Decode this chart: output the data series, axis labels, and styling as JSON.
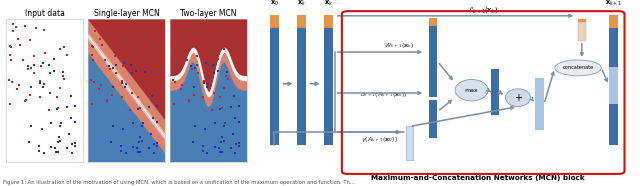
{
  "fig_width": 6.4,
  "fig_height": 1.86,
  "dpi": 100,
  "background": "#ffffff",
  "panel_titles": [
    "Input data",
    "Single-layer MCN",
    "Two-layer MCN"
  ],
  "panel_title_fontsize": 5.5,
  "caption_fontsize": 3.8,
  "mcn_block_label": "Maximum-and-Concatenation Networks (MCN) block",
  "mcn_block_label_fontsize": 5.2,
  "math_labels": {
    "x0": "$\\mathbf{x}_0$",
    "xk_bar": "$\\mathbf{x}_{\\bar{k}}$",
    "xk": "$\\mathbf{x}_k$",
    "Lk1": "$\\mathcal{L}_{k+1}(\\mathbf{x}_k)$",
    "xk1": "$\\mathbf{x}_{k+1}$",
    "Wk1": "$W_{k+1}(\\mathbf{x}_k)$",
    "sigma_k1": "$\\sigma_{k+1}(A_{k+1}(\\mathbf{x}_k))$",
    "gamma_Ak1": "$\\gamma\\left(A_{k+1}(\\mathbf{x}_0)\\right)$"
  },
  "math_fontsize": 4.8,
  "blue_dark": "#3a6ea5",
  "blue_light": "#a8c4e0",
  "blue_very_light": "#ccddf0",
  "orange": "#e8934a",
  "red_region": "#a83030",
  "pink_region": "#d9826e",
  "pink_light": "#f0c0b0",
  "blue_region": "#4a7fb5",
  "blue_region2": "#5588bb",
  "scatter_red": "#cc2222",
  "scatter_blue": "#2233bb",
  "arrow_gray": "#7a8fa8",
  "box_red": "#cc1111",
  "concat_fill": "#e8edf2",
  "plus_fill": "#d0dae8",
  "max_fill": "#d8e2ee",
  "white": "#ffffff"
}
